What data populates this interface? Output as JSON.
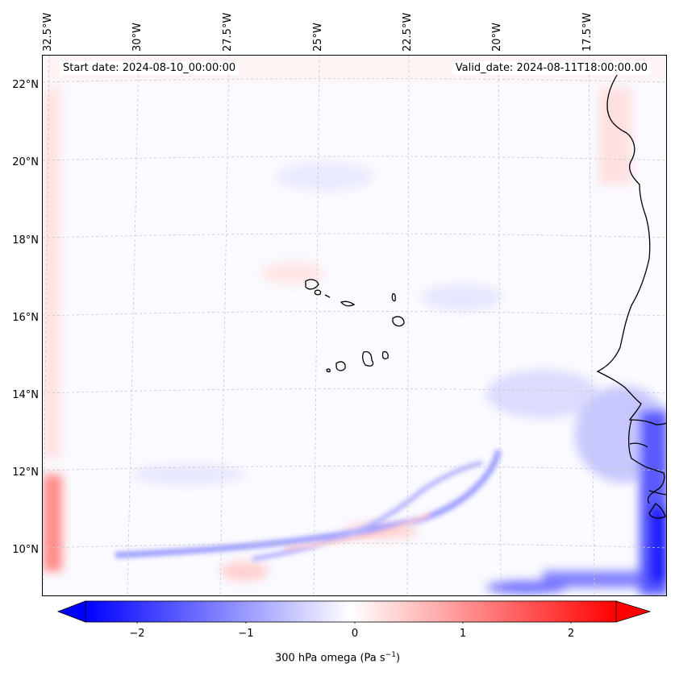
{
  "header": {
    "start_date": "Start date: 2024-08-10_00:00:00",
    "valid_date": "Valid_date: 2024-08-11T18:00:00.00"
  },
  "axes": {
    "lon_labels": [
      "32.5°W",
      "30°W",
      "27.5°W",
      "25°W",
      "22.5°W",
      "20°W",
      "17.5°W"
    ],
    "lat_labels": [
      "22°N",
      "20°N",
      "18°N",
      "16°N",
      "14°N",
      "12°N",
      "10°N"
    ]
  },
  "colorbar": {
    "ticks": [
      "−2",
      "−1",
      "0",
      "1",
      "2"
    ],
    "label_pre": "300 hPa omega (Pa s",
    "label_sup": "−1",
    "label_post": ")",
    "range": [
      -2.5,
      2.5
    ],
    "colormap": "bwr",
    "extend": "both"
  },
  "colors": {
    "negative": "#0000ff",
    "neutral": "#ffffff",
    "positive": "#ff0000",
    "coastline": "#000000",
    "gridline": "#c8c8c8"
  },
  "map": {
    "projection": "lambert-conformal",
    "feature": "coastlines",
    "region": "Cape Verde and West African coast",
    "gridlines": true
  }
}
